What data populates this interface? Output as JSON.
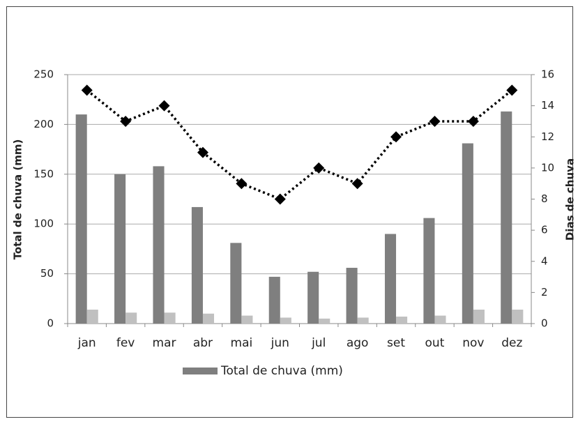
{
  "chart_data": {
    "type": "bar",
    "categories": [
      "jan",
      "fev",
      "mar",
      "abr",
      "mai",
      "jun",
      "jul",
      "ago",
      "set",
      "out",
      "nov",
      "dez"
    ],
    "series": [
      {
        "name": "Total de chuva (mm)",
        "color": "#7f7f7f",
        "values": [
          210,
          150,
          158,
          117,
          81,
          47,
          52,
          56,
          90,
          106,
          181,
          213
        ]
      },
      {
        "color": "#c0c0c0",
        "values": [
          14,
          11,
          11,
          10,
          8,
          6,
          5,
          6,
          7,
          8,
          14,
          14
        ]
      },
      {
        "type": "line",
        "axis": "y2",
        "color": "#000000",
        "values": [
          15,
          13,
          14,
          11,
          9,
          8,
          10,
          9,
          12,
          13,
          13,
          15
        ]
      }
    ],
    "ylabel": "Total de chuva (mm)",
    "y2label": "Dias de chuva",
    "ylim": [
      0,
      250
    ],
    "yticks": [
      0,
      50,
      100,
      150,
      200,
      250
    ],
    "y2lim": [
      0,
      16
    ],
    "y2ticks": [
      0,
      2,
      4,
      6,
      8,
      10,
      12,
      14,
      16
    ],
    "grid": true,
    "legend": "bottom"
  }
}
